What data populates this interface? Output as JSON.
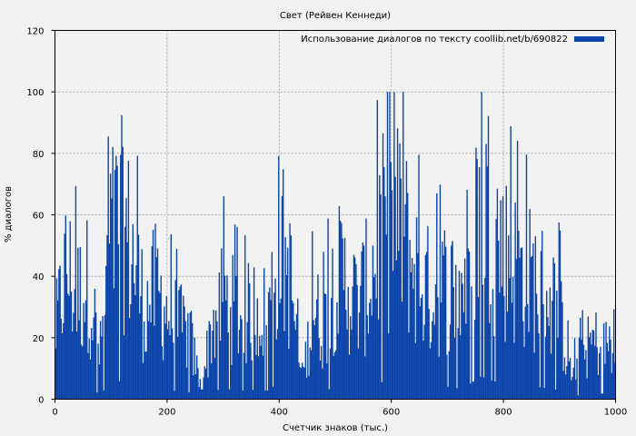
{
  "chart_data": {
    "type": "bar",
    "title": "Свет (Рейвен Кеннеди)",
    "xlabel": "Счетчик знаков (тыс.)",
    "ylabel": "% диалогов",
    "xlim": [
      0,
      1000
    ],
    "ylim": [
      0,
      120
    ],
    "xticks": [
      "0",
      "200",
      "400",
      "600",
      "800",
      "1000"
    ],
    "yticks": [
      "0",
      "20",
      "40",
      "60",
      "80",
      "100",
      "120"
    ],
    "grid": true,
    "legend_position": "top-right",
    "colors": {
      "bar": "#0b44aa",
      "background": "#f2f2f2",
      "grid": "#999999"
    },
    "series": [
      {
        "name": "Использование диалогов по тексту coollib.net/b/690822",
        "bin_width": 2,
        "x": [
          0,
          20,
          40,
          60,
          80,
          100,
          120,
          140,
          160,
          180,
          200,
          220,
          240,
          260,
          280,
          300,
          320,
          340,
          360,
          380,
          400,
          420,
          440,
          460,
          480,
          500,
          520,
          540,
          560,
          580,
          600,
          620,
          640,
          660,
          680,
          700,
          720,
          740,
          760,
          780,
          800,
          820,
          840,
          860,
          880,
          900,
          920,
          940,
          960,
          980,
          1000
        ],
        "values": [
          22,
          45,
          35,
          40,
          15,
          55,
          60,
          48,
          30,
          38,
          30,
          25,
          22,
          4,
          25,
          35,
          30,
          28,
          32,
          28,
          55,
          40,
          5,
          30,
          25,
          42,
          40,
          32,
          40,
          55,
          60,
          58,
          45,
          38,
          35,
          40,
          35,
          50,
          75,
          60,
          50,
          45,
          42,
          40,
          35,
          30,
          8,
          15,
          20,
          18,
          20
        ]
      }
    ]
  }
}
